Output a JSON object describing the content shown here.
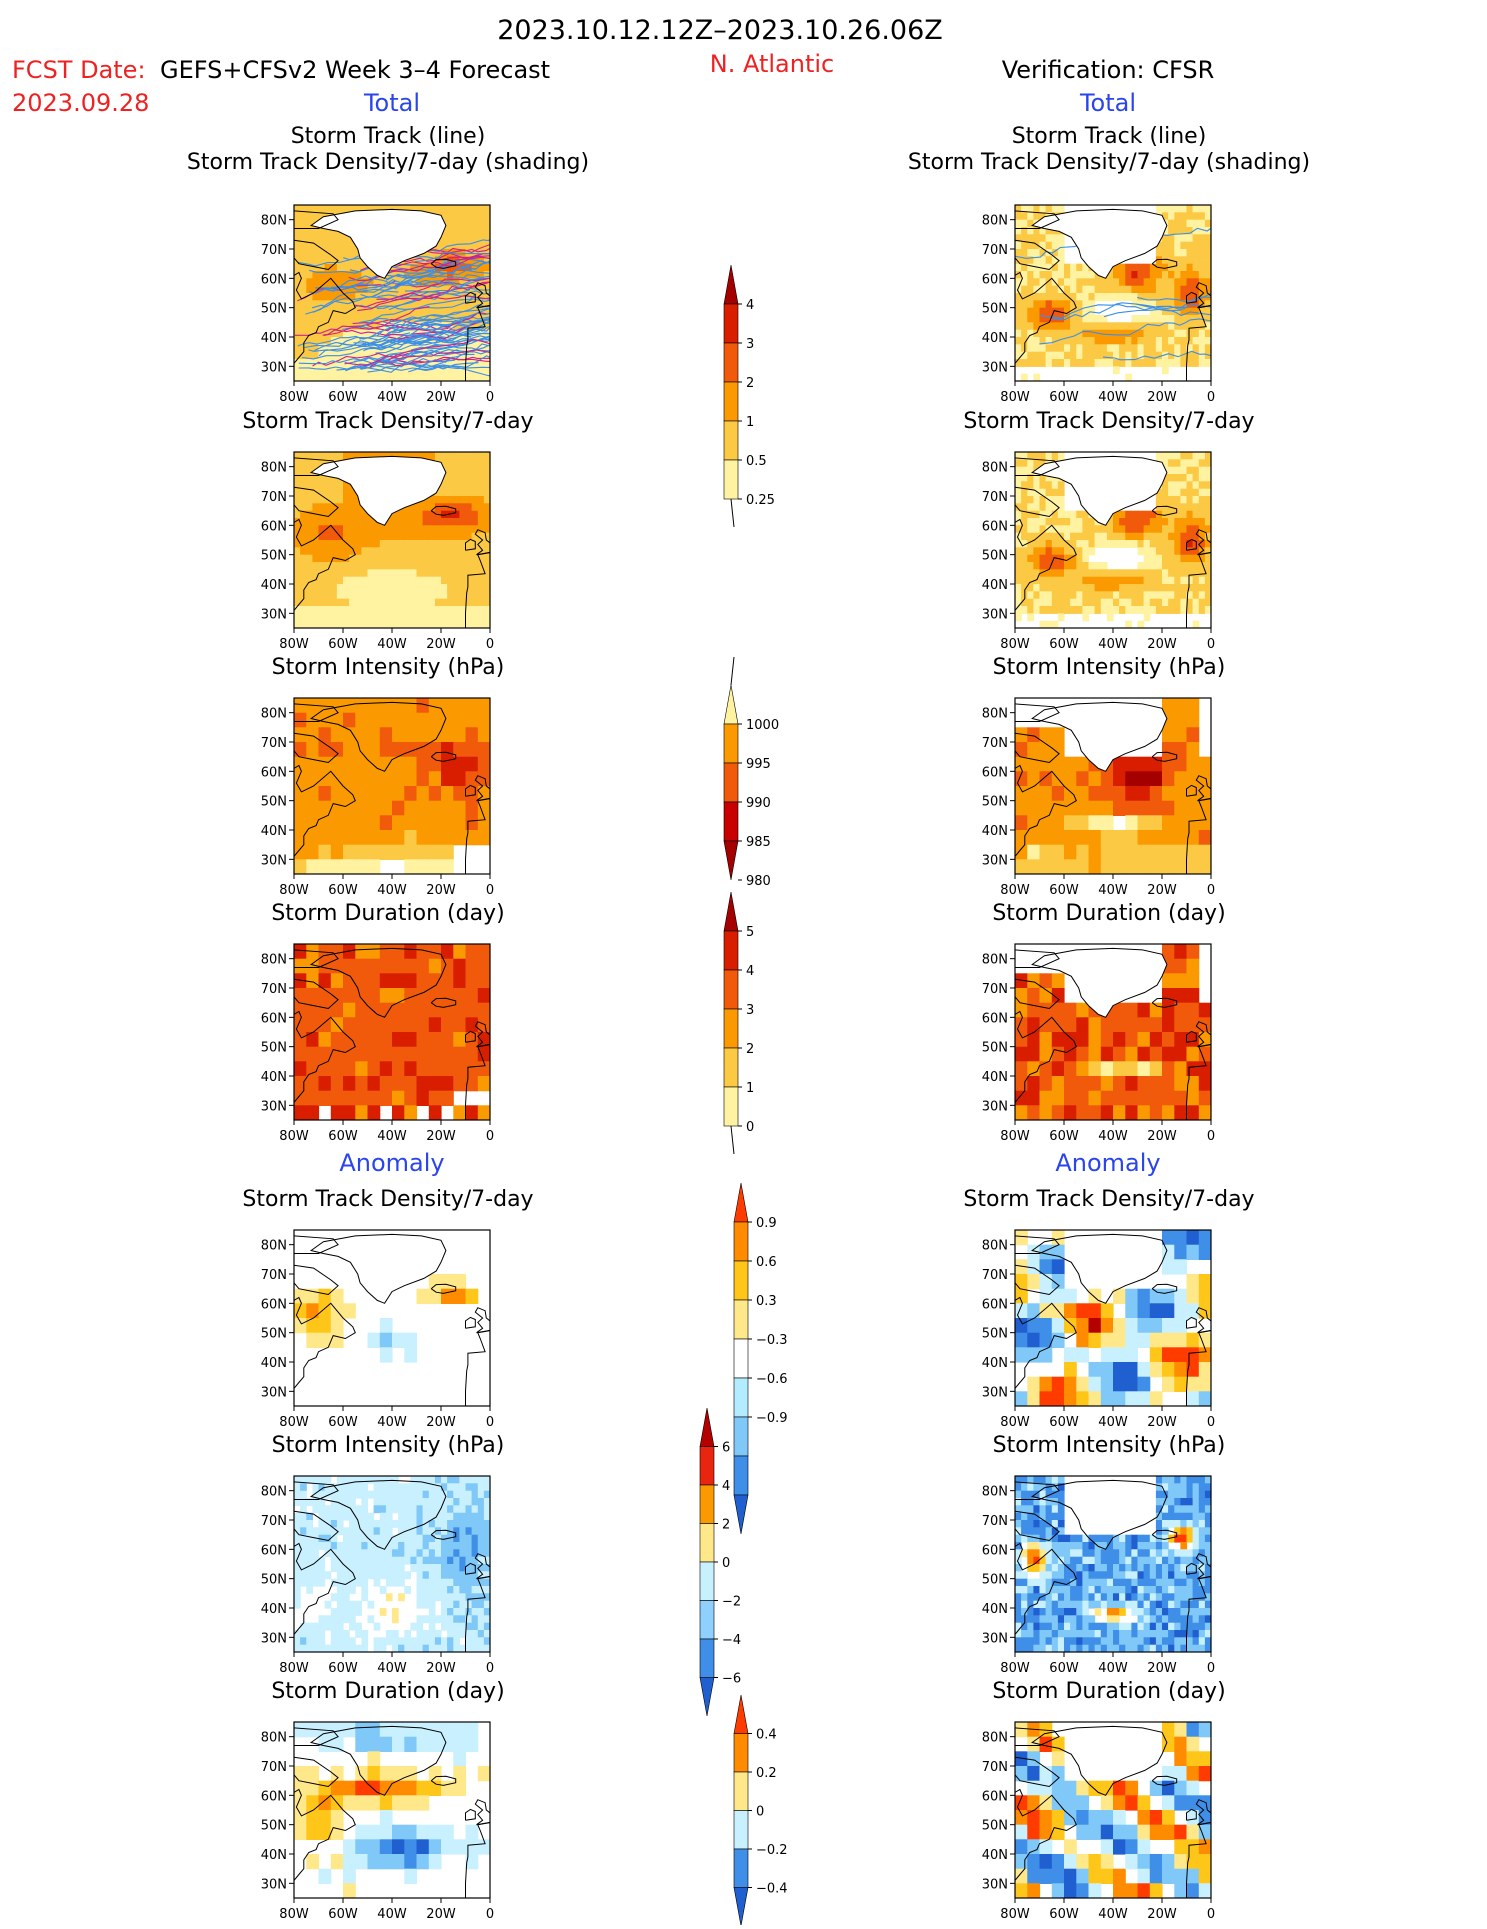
{
  "header": {
    "date_range": "2023.10.12.12Z–2023.10.26.06Z",
    "fcst_date_label": "FCST Date:",
    "forecast_title": "GEFS+CFSv2 Week 3–4 Forecast",
    "fcst_date": "2023.09.28",
    "region": "N. Atlantic",
    "verification": "Verification: CFSR",
    "left_section": "Total",
    "right_section": "Total",
    "left_anomaly": "Anomaly",
    "right_anomaly": "Anomaly"
  },
  "colors": {
    "title": "#000000",
    "red_text": "#ee2222",
    "blue_text": "#2a44ee"
  },
  "axes": {
    "lon_ticks": [
      "80W",
      "60W",
      "40W",
      "20W",
      "0"
    ],
    "lat_ticks": [
      "80N",
      "70N",
      "60N",
      "50N",
      "40N",
      "30N"
    ],
    "lon_range": [
      -80,
      0
    ],
    "lat_range": [
      25,
      85
    ]
  },
  "colorbars": [
    {
      "id": "track-density-total",
      "labels": [
        "4",
        "3",
        "2",
        "1",
        "0.5",
        "0.25"
      ],
      "colors": [
        "#a50000",
        "#d91e00",
        "#f05a0a",
        "#fb9a00",
        "#fcc945",
        "#fff2a0"
      ]
    },
    {
      "id": "intensity-total",
      "labels": [
        "1000",
        "995",
        "990",
        "985",
        "980"
      ],
      "colors": [
        "#fff2a0",
        "#fb9a00",
        "#f05a0a",
        "#c80000",
        "#a50000"
      ]
    },
    {
      "id": "duration-total",
      "labels": [
        "5",
        "4",
        "3",
        "2",
        "1",
        "0"
      ],
      "colors": [
        "#a50000",
        "#d91e00",
        "#f05a0a",
        "#fb9a00",
        "#fcc945",
        "#fff2a0"
      ]
    },
    {
      "id": "track-density-anom",
      "labels": [
        "0.9",
        "0.6",
        "0.3",
        "−0.3",
        "−0.6",
        "−0.9"
      ],
      "colors": [
        "#ff3b00",
        "#ff8c00",
        "#ffc61a",
        "#ffe88a",
        "#ffffff",
        "#b3ecff",
        "#7fc8f8",
        "#3f8fe8",
        "#1f5fd0"
      ]
    },
    {
      "id": "intensity-anom",
      "labels": [
        "6",
        "4",
        "2",
        "0",
        "−2",
        "−4",
        "−6"
      ],
      "colors": [
        "#b50000",
        "#e8260f",
        "#fb9a00",
        "#ffe88a",
        "#c9f0ff",
        "#8fd0ff",
        "#3f8fe8",
        "#1f5fd0"
      ]
    },
    {
      "id": "duration-anom",
      "labels": [
        "0.4",
        "0.2",
        "0",
        "−0.2",
        "−0.4"
      ],
      "colors": [
        "#ff3b00",
        "#ff8c00",
        "#ffe88a",
        "#c9f0ff",
        "#3f8fe8",
        "#1f5fd0"
      ]
    }
  ],
  "panels": [
    {
      "id": "L1",
      "title": "Storm Track (line)\nStorm Track Density/7‑day (shading)",
      "title_line1": "Storm Track (line)",
      "title_line2": "Storm Track Density/7‑day (shading)",
      "side": "forecast",
      "variable": "track_density_with_tracks"
    },
    {
      "id": "R1",
      "title_line1": "Storm Track (line)",
      "title_line2": "Storm Track Density/7‑day (shading)",
      "side": "verification",
      "variable": "track_density_with_tracks"
    },
    {
      "id": "L2",
      "title_line1": "Storm Track Density/7‑day",
      "side": "forecast",
      "variable": "track_density"
    },
    {
      "id": "R2",
      "title_line1": "Storm Track Density/7‑day",
      "side": "verification",
      "variable": "track_density"
    },
    {
      "id": "L3",
      "title_line1": "Storm Intensity (hPa)",
      "side": "forecast",
      "variable": "intensity"
    },
    {
      "id": "R3",
      "title_line1": "Storm Intensity (hPa)",
      "side": "verification",
      "variable": "intensity"
    },
    {
      "id": "L4",
      "title_line1": "Storm Duration (day)",
      "side": "forecast",
      "variable": "duration"
    },
    {
      "id": "R4",
      "title_line1": "Storm Duration (day)",
      "side": "verification",
      "variable": "duration"
    },
    {
      "id": "L5",
      "title_line1": "Storm Track Density/7‑day",
      "side": "forecast",
      "variable": "track_density_anomaly"
    },
    {
      "id": "R5",
      "title_line1": "Storm Track Density/7‑day",
      "side": "verification",
      "variable": "track_density_anomaly"
    },
    {
      "id": "L6",
      "title_line1": "Storm Intensity (hPa)",
      "side": "forecast",
      "variable": "intensity_anomaly"
    },
    {
      "id": "R6",
      "title_line1": "Storm Intensity (hPa)",
      "side": "verification",
      "variable": "intensity_anomaly"
    },
    {
      "id": "L7",
      "title_line1": "Storm Duration (day)",
      "side": "forecast",
      "variable": "duration_anomaly"
    },
    {
      "id": "R7",
      "title_line1": "Storm Duration (day)",
      "side": "verification",
      "variable": "duration_anomaly"
    }
  ],
  "chart_data": {
    "type": "heatmap",
    "description_of_values": "Gridded shading; values estimated from color scale",
    "lon_range": [
      -80,
      0
    ],
    "lat_range": [
      25,
      85
    ]
  }
}
